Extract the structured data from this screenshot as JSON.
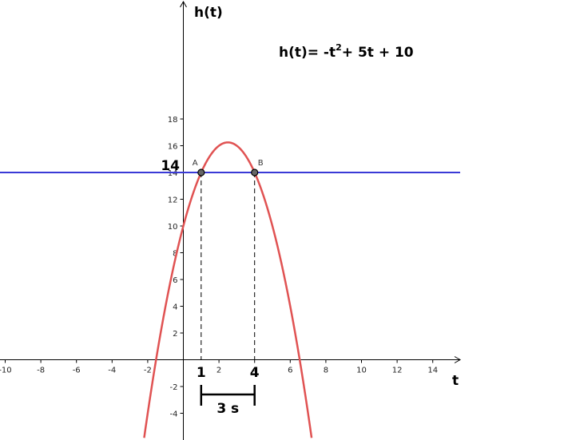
{
  "chart_data": {
    "type": "line",
    "title": "",
    "xlabel": "t",
    "ylabel": "h(t)",
    "xlim": [
      -10,
      16
    ],
    "ylim": [
      -4,
      20
    ],
    "x_ticks": [
      "-10",
      "-8",
      "-6",
      "-4",
      "-2",
      "2",
      "4",
      "6",
      "8",
      "10",
      "12",
      "14"
    ],
    "y_ticks": [
      "-4",
      "-2",
      "2",
      "4",
      "6",
      "8",
      "10",
      "12",
      "14",
      "16",
      "18"
    ],
    "grid": false,
    "function": {
      "label": "h(t)= -t",
      "label_exponent": "2",
      "label_rest": "+ 5t + 10",
      "coefficients": [
        -1,
        5,
        10
      ],
      "color": "#e05252"
    },
    "horizontal_line": {
      "y": 14,
      "label": "14",
      "color": "#3a3ad6"
    },
    "points": [
      {
        "name": "A",
        "x": 1,
        "y": 14,
        "label": "1"
      },
      {
        "name": "B",
        "x": 4,
        "y": 14,
        "label": "4"
      }
    ],
    "interval": {
      "from": 1,
      "to": 4,
      "label": "3 s"
    }
  }
}
